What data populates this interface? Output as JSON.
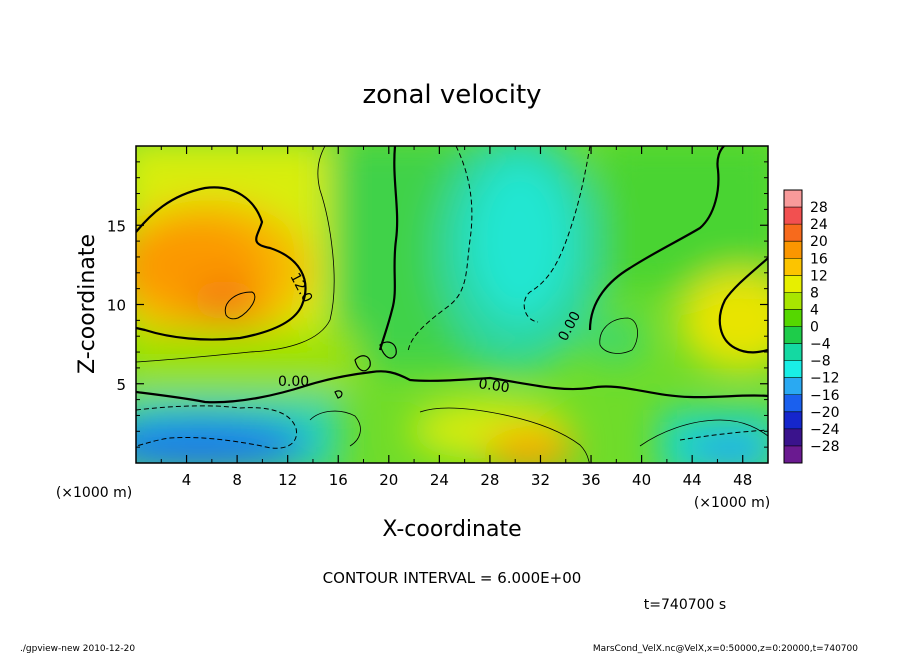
{
  "chart_data": {
    "type": "heatmap",
    "title": "zonal velocity",
    "xlabel": "X-coordinate",
    "ylabel": "Z-coordinate",
    "x_unit_label": "(×1000 m)",
    "y_unit_label": "(×1000 m)",
    "xlim": [
      0,
      50
    ],
    "ylim": [
      0,
      20
    ],
    "x_ticks": [
      "4",
      "8",
      "12",
      "16",
      "20",
      "24",
      "28",
      "32",
      "36",
      "40",
      "44",
      "48"
    ],
    "x_tick_values": [
      4,
      8,
      12,
      16,
      20,
      24,
      28,
      32,
      36,
      40,
      44,
      48
    ],
    "y_ticks": [
      "5",
      "10",
      "15"
    ],
    "y_tick_values": [
      5,
      10,
      15
    ],
    "colorbar_labels": [
      "28",
      "24",
      "20",
      "16",
      "12",
      "8",
      "4",
      "0",
      "−4",
      "−8",
      "−12",
      "−16",
      "−20",
      "−24",
      "−28"
    ],
    "colorbar_values": [
      28,
      24,
      20,
      16,
      12,
      8,
      4,
      0,
      -4,
      -8,
      -12,
      -16,
      -20,
      -24,
      -28
    ],
    "colorbar_colors": [
      "#f89a9a",
      "#f25050",
      "#f76a1c",
      "#fb9600",
      "#fcc400",
      "#e7ef00",
      "#a8e600",
      "#55d700",
      "#1ecc4a",
      "#14d9a2",
      "#19eee6",
      "#2aa9f2",
      "#1a60ee",
      "#1526cc",
      "#3a138c",
      "#6a1a90"
    ],
    "contour_labels": [
      "12.0",
      "0.00",
      "0.00",
      "0.00"
    ],
    "contour_interval_text": "CONTOUR INTERVAL = 6.000E+00",
    "time_text": "t=740700 s",
    "footer_left": "./gpview-new   2010-12-20",
    "footer_right": "MarsCond_VelX.nc@VelX,x=0:50000,z=0:20000,t=740700"
  }
}
